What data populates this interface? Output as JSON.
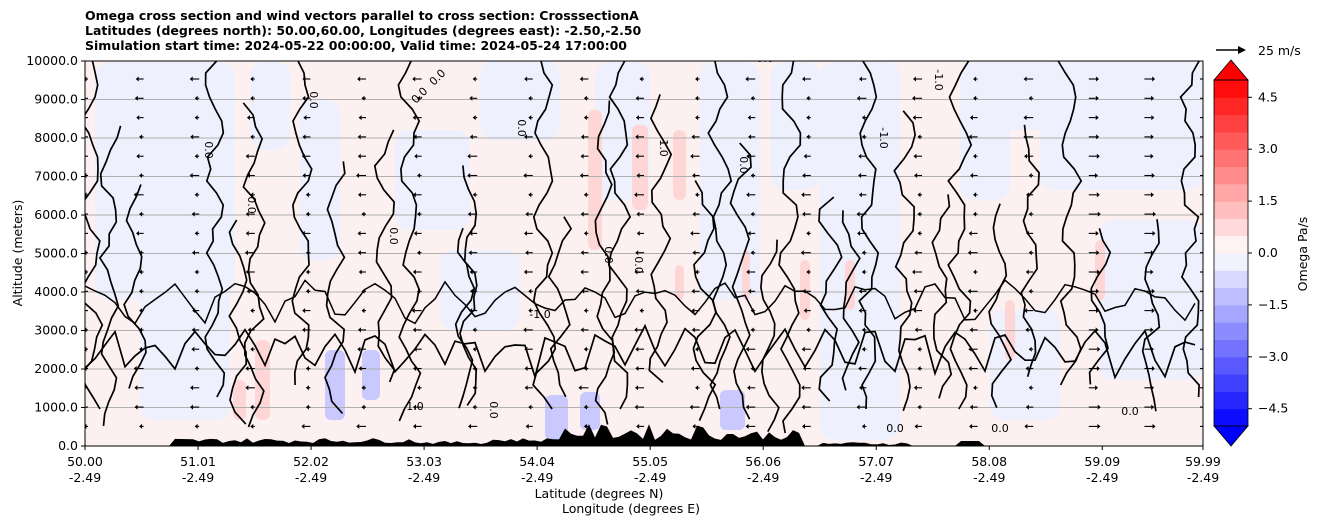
{
  "title_lines": [
    "Omega cross section and wind vectors parallel to cross section: CrosssectionA",
    "Latitudes (degrees north): 50.00,60.00, Longitudes (degrees east): -2.50,-2.50",
    "Simulation start time: 2024-05-22 00:00:00, Valid time: 2024-05-24 17:00:00"
  ],
  "chart_data": {
    "type": "heatmap",
    "title": "Omega cross section and wind vectors parallel to cross section: CrosssectionA",
    "ylabel": "Altitude (meters)",
    "xlabel_lines": [
      "Latitude (degrees N)",
      "Longitude (degrees E)"
    ],
    "ylim": [
      0,
      10000
    ],
    "xlim": [
      50.0,
      59.99
    ],
    "y_ticks": [
      0,
      1000,
      2000,
      3000,
      4000,
      5000,
      6000,
      7000,
      8000,
      9000,
      10000
    ],
    "y_tick_labels": [
      "0.0",
      "1000.0",
      "2000.0",
      "3000.0",
      "4000.0",
      "5000.0",
      "6000.0",
      "7000.0",
      "8000.0",
      "9000.0",
      "10000.0"
    ],
    "x_ticks": [
      {
        "lat": "50.00",
        "lon": "-2.49"
      },
      {
        "lat": "51.01",
        "lon": "-2.49"
      },
      {
        "lat": "52.02",
        "lon": "-2.49"
      },
      {
        "lat": "53.03",
        "lon": "-2.49"
      },
      {
        "lat": "54.04",
        "lon": "-2.49"
      },
      {
        "lat": "55.05",
        "lon": "-2.49"
      },
      {
        "lat": "56.06",
        "lon": "-2.49"
      },
      {
        "lat": "57.07",
        "lon": "-2.49"
      },
      {
        "lat": "58.08",
        "lon": "-2.49"
      },
      {
        "lat": "59.09",
        "lon": "-2.49"
      },
      {
        "lat": "59.99",
        "lon": "-2.49"
      }
    ],
    "colorbar": {
      "label": "Omega Pa/s",
      "range": [
        -5.0,
        5.0
      ],
      "ticks": [
        4.5,
        3.0,
        1.5,
        0.0,
        -1.5,
        -3.0,
        -4.5
      ],
      "tick_labels": [
        "4.5",
        "3.0",
        "1.5",
        "0.0",
        "−1.5",
        "−3.0",
        "−4.5"
      ],
      "extend": "both",
      "colors": {
        "positive": "#ff0000",
        "negative": "#0000ff",
        "neutral": "#ffffff"
      }
    },
    "vector_key_label": "25 m/s",
    "contour_labels": [
      "0.0",
      "0.0",
      "0.0",
      "0.0",
      "0.0",
      "0.0",
      "0.0",
      "1.0",
      "0.0",
      "-1.0",
      "-1.0",
      "1.0",
      "0.0",
      "-1.0",
      "0.0",
      "0.0",
      "0.0",
      "0.0",
      "0.0",
      "0.0"
    ],
    "background_field": "weak positive omega (light pink) with light-blue ascent regions and black 0.0 contours",
    "terrain_color": "#000000"
  }
}
